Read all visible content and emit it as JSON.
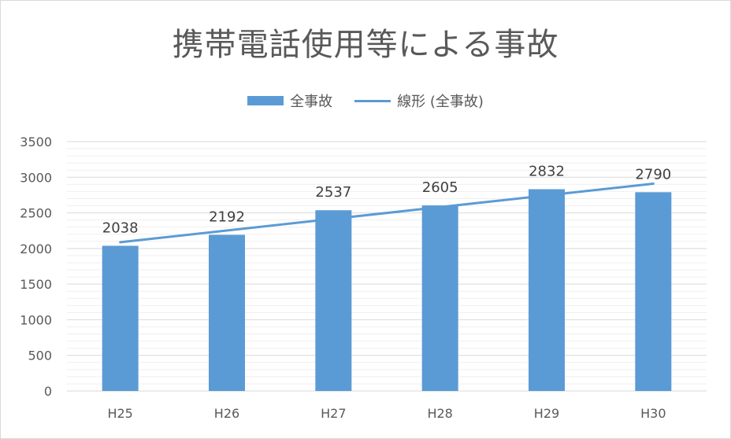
{
  "chart_data": {
    "type": "bar",
    "title": "携帯電話使用等による事故",
    "categories": [
      "H25",
      "H26",
      "H27",
      "H28",
      "H29",
      "H30"
    ],
    "series": [
      {
        "name": "全事故",
        "type": "bar",
        "values": [
          2038,
          2192,
          2537,
          2605,
          2832,
          2790
        ]
      }
    ],
    "trendline": {
      "name": "線形 (全事故)",
      "type": "linear"
    },
    "yticks": [
      "0",
      "500",
      "1000",
      "1500",
      "2000",
      "2500",
      "3000",
      "3500"
    ],
    "ylim": [
      0,
      3500
    ],
    "data_labels": true,
    "grid": true,
    "legend_position": "top",
    "colors": {
      "bar": "#5b9bd5",
      "trendline": "#5b9bd5",
      "grid": "#d9d9d9",
      "text": "#595959"
    }
  }
}
